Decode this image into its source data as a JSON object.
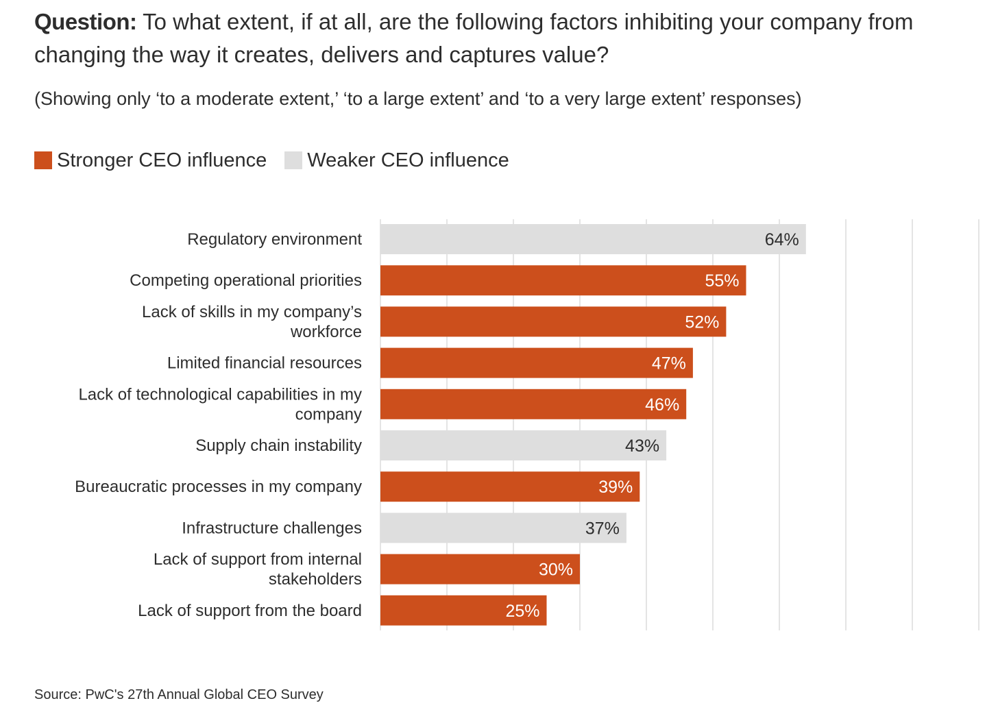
{
  "question": {
    "label": "Question:",
    "text": " To what extent, if at all, are the following factors inhibiting your company from changing the way it creates, delivers and captures value?"
  },
  "subtitle": "(Showing only ‘to a moderate extent,’ ‘to a large extent’ and ‘to a very large extent’ responses)",
  "legend": [
    {
      "label": "Stronger CEO influence",
      "color": "#cc4f1c"
    },
    {
      "label": "Weaker CEO influence",
      "color": "#dedede"
    }
  ],
  "colors": {
    "stronger": "#cc4f1c",
    "weaker": "#dedede",
    "gridline": "#e4e4e4",
    "dark_text": "#2d2d2d",
    "light_text": "#ffffff"
  },
  "chart_data": {
    "type": "bar",
    "orientation": "horizontal",
    "categories": [
      [
        "Regulatory environment"
      ],
      [
        "Competing operational priorities"
      ],
      [
        "Lack of skills in my company’s",
        "workforce"
      ],
      [
        "Limited financial resources"
      ],
      [
        "Lack of technological capabilities in my",
        "company"
      ],
      [
        "Supply chain instability"
      ],
      [
        "Bureaucratic processes in my company"
      ],
      [
        "Infrastructure challenges"
      ],
      [
        "Lack of support from internal",
        "stakeholders"
      ],
      [
        "Lack of support from the board"
      ]
    ],
    "values": [
      64,
      55,
      52,
      47,
      46,
      43,
      39,
      37,
      30,
      25
    ],
    "value_labels": [
      "64%",
      "55%",
      "52%",
      "47%",
      "46%",
      "43%",
      "39%",
      "37%",
      "30%",
      "25%"
    ],
    "groups": [
      "weaker",
      "stronger",
      "stronger",
      "stronger",
      "stronger",
      "weaker",
      "stronger",
      "weaker",
      "stronger",
      "stronger"
    ],
    "xlim": [
      0,
      90
    ],
    "grid_step": 10,
    "grid": true,
    "legend_position": "top-left"
  },
  "source": "Source: PwC's 27th Annual Global CEO Survey"
}
